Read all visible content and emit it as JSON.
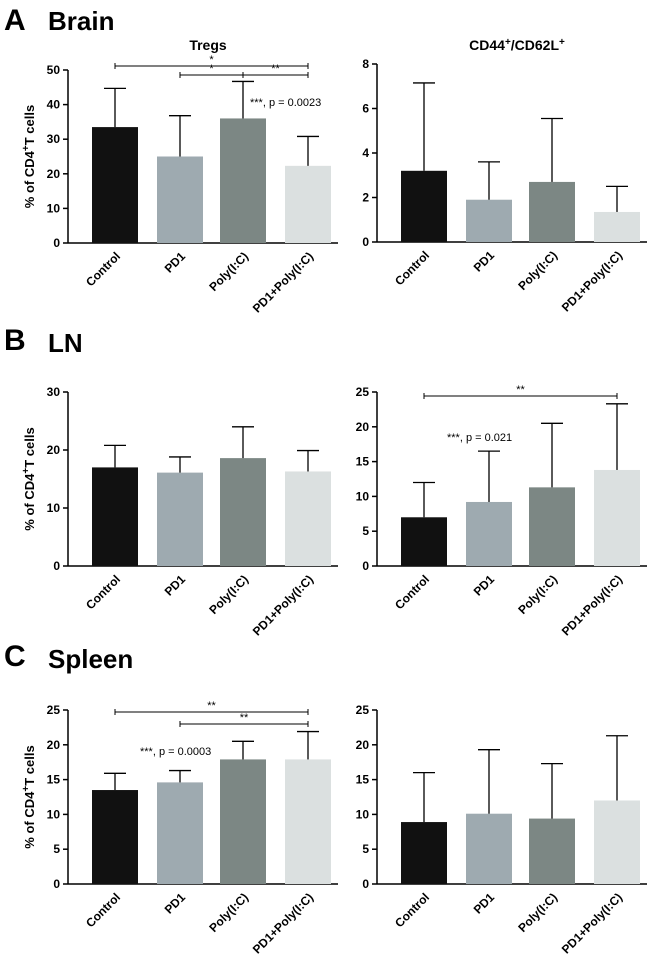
{
  "panels": [
    {
      "letter": "A",
      "title": "Brain"
    },
    {
      "letter": "B",
      "title": "LN"
    },
    {
      "letter": "C",
      "title": "Spleen"
    }
  ],
  "colors": {
    "Control": "#111111",
    "PD1": "#9eaab0",
    "Poly(I:C)": "#7c8784",
    "PD1+Poly(I:C)": "#dbe0e0"
  },
  "chart_data": [
    {
      "id": "brain-tregs",
      "type": "bar",
      "title": "Tregs",
      "title_sup": "",
      "ylabel": "% of CD4+T cells",
      "categories": [
        "Control",
        "PD1",
        "Poly(I:C)",
        "PD1+Poly(I:C)"
      ],
      "values": [
        33.5,
        25,
        36,
        22.3
      ],
      "errors": [
        11.2,
        11.8,
        10.7,
        8.5
      ],
      "ylim": [
        0,
        50
      ],
      "yticks": [
        0,
        10,
        20,
        30,
        40,
        50
      ],
      "annotation": "***, p = 0.0023",
      "significance": [
        {
          "from": "Control",
          "to": "PD1+Poly(I:C)",
          "label": "*"
        },
        {
          "from": "PD1",
          "to": "Poly(I:C)",
          "label": "*"
        },
        {
          "from": "Poly(I:C)",
          "to": "PD1+Poly(I:C)",
          "label": "**"
        }
      ]
    },
    {
      "id": "brain-cd44",
      "type": "bar",
      "title": "CD44",
      "title_sup": "+",
      "title_rest": "/CD62L",
      "title_sup2": "+",
      "ylabel": "",
      "categories": [
        "Control",
        "PD1",
        "Poly(I:C)",
        "PD1+Poly(I:C)"
      ],
      "values": [
        3.2,
        1.9,
        2.7,
        1.35
      ],
      "errors": [
        3.95,
        1.7,
        2.85,
        1.15
      ],
      "ylim": [
        0,
        8
      ],
      "yticks": [
        0,
        2,
        4,
        6,
        8
      ],
      "annotation": "",
      "significance": []
    },
    {
      "id": "ln-tregs",
      "type": "bar",
      "title": "",
      "ylabel": "% of CD4+T cells",
      "categories": [
        "Control",
        "PD1",
        "Poly(I:C)",
        "PD1+Poly(I:C)"
      ],
      "values": [
        17,
        16.1,
        18.6,
        16.3
      ],
      "errors": [
        3.8,
        2.7,
        5.4,
        3.6
      ],
      "ylim": [
        0,
        30
      ],
      "yticks": [
        0,
        10,
        20,
        30
      ],
      "annotation": "",
      "significance": []
    },
    {
      "id": "ln-cd44",
      "type": "bar",
      "title": "",
      "ylabel": "",
      "categories": [
        "Control",
        "PD1",
        "Poly(I:C)",
        "PD1+Poly(I:C)"
      ],
      "values": [
        7,
        9.2,
        11.3,
        13.8
      ],
      "errors": [
        5,
        7.3,
        9.2,
        9.5
      ],
      "ylim": [
        0,
        25
      ],
      "yticks": [
        0,
        5,
        10,
        15,
        20,
        25
      ],
      "annotation": "***, p = 0.021",
      "significance": [
        {
          "from": "Control",
          "to": "PD1+Poly(I:C)",
          "label": "**"
        }
      ]
    },
    {
      "id": "spleen-tregs",
      "type": "bar",
      "title": "",
      "ylabel": "% of CD4+T cells",
      "categories": [
        "Control",
        "PD1",
        "Poly(I:C)",
        "PD1+Poly(I:C)"
      ],
      "values": [
        13.5,
        14.6,
        17.9,
        17.9
      ],
      "errors": [
        2.4,
        1.7,
        2.6,
        4
      ],
      "ylim": [
        0,
        25
      ],
      "yticks": [
        0,
        5,
        10,
        15,
        20,
        25
      ],
      "annotation": "***, p = 0.0003",
      "significance": [
        {
          "from": "Control",
          "to": "PD1+Poly(I:C)",
          "label": "**"
        },
        {
          "from": "PD1",
          "to": "PD1+Poly(I:C)",
          "label": "**"
        }
      ]
    },
    {
      "id": "spleen-cd44",
      "type": "bar",
      "title": "",
      "ylabel": "",
      "categories": [
        "Control",
        "PD1",
        "Poly(I:C)",
        "PD1+Poly(I:C)"
      ],
      "values": [
        8.9,
        10.1,
        9.4,
        12
      ],
      "errors": [
        7.1,
        9.2,
        7.9,
        9.3
      ],
      "ylim": [
        0,
        25
      ],
      "yticks": [
        0,
        5,
        10,
        15,
        20,
        25
      ],
      "annotation": "",
      "significance": []
    }
  ]
}
